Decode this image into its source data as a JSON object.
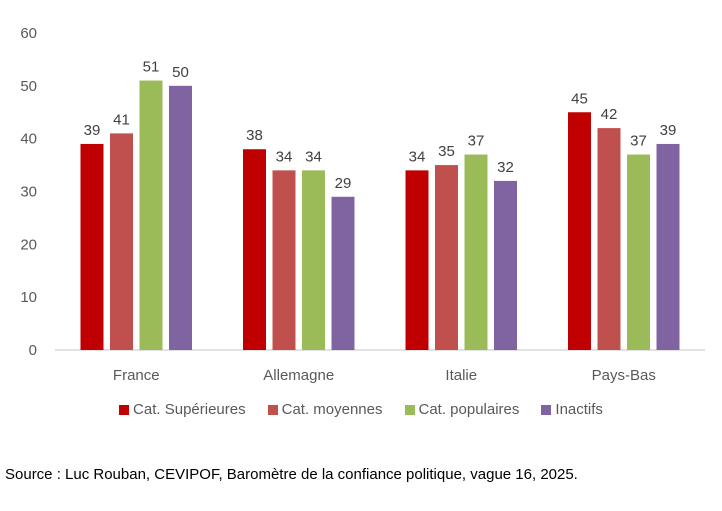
{
  "chart_data": {
    "type": "bar",
    "title": "",
    "xlabel": "",
    "ylabel": "",
    "ylim": [
      0,
      60
    ],
    "yticks": [
      0,
      10,
      20,
      30,
      40,
      50,
      60
    ],
    "grid": false,
    "legend_position": "bottom",
    "categories": [
      "France",
      "Allemagne",
      "Italie",
      "Pays-Bas"
    ],
    "series": [
      {
        "name": "Cat. Supérieures",
        "color": "#C00000",
        "values": [
          39,
          38,
          34,
          45
        ]
      },
      {
        "name": "Cat. moyennes",
        "color": "#C0504D",
        "values": [
          41,
          34,
          35,
          42
        ]
      },
      {
        "name": "Cat. populaires",
        "color": "#9BBB59",
        "values": [
          51,
          34,
          37,
          37
        ]
      },
      {
        "name": "Inactifs",
        "color": "#8064A2",
        "values": [
          50,
          29,
          32,
          39
        ]
      }
    ],
    "data_labels": true
  },
  "source": "Source : Luc Rouban, CEVIPOF, Baromètre de la confiance politique, vague 16, 2025."
}
